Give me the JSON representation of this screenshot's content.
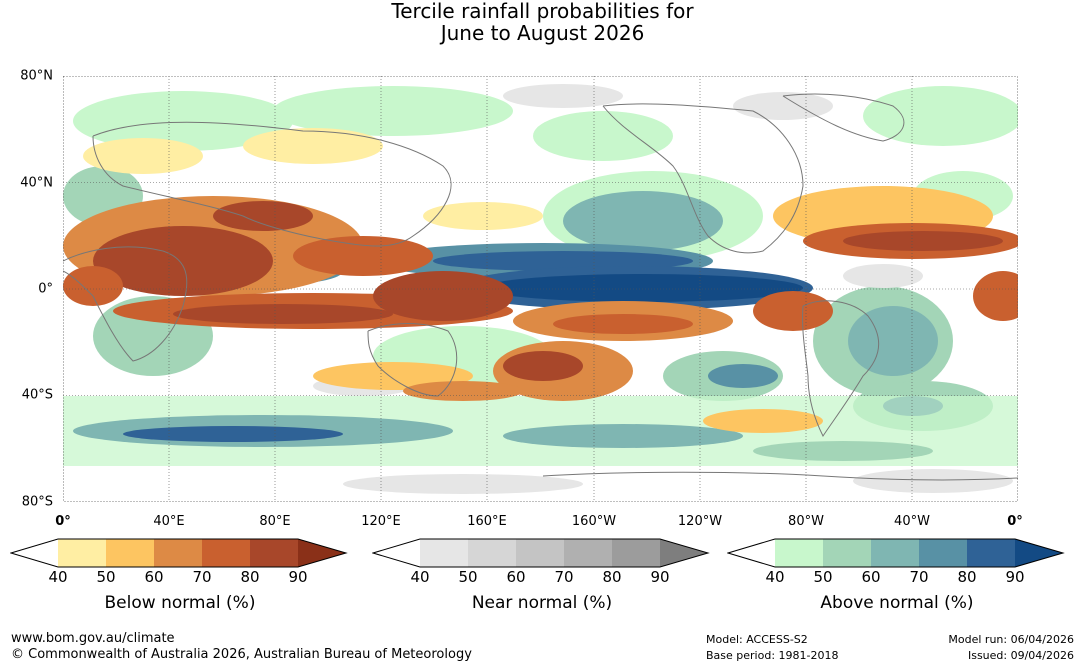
{
  "title": {
    "line1": "Tercile rainfall probabilities for",
    "line2": "June to August 2026"
  },
  "map": {
    "lat_labels": [
      "80°N",
      "40°N",
      "0°",
      "40°S",
      "80°S"
    ],
    "lon_labels": [
      "0°",
      "40°E",
      "80°E",
      "120°E",
      "160°E",
      "160°W",
      "120°W",
      "80°W",
      "40°W",
      "0°"
    ]
  },
  "legends": [
    {
      "title": "Below normal (%)",
      "ticks": [
        "40",
        "50",
        "60",
        "70",
        "80",
        "90"
      ],
      "colors": [
        "#ffffff",
        "#ffeea3",
        "#fdc561",
        "#dd8a45",
        "#c9602f",
        "#a8472a",
        "#8a3018"
      ]
    },
    {
      "title": "Near normal (%)",
      "ticks": [
        "40",
        "50",
        "60",
        "70",
        "80",
        "90"
      ],
      "colors": [
        "#ffffff",
        "#e6e6e6",
        "#d6d6d6",
        "#c4c4c4",
        "#b0b0b0",
        "#9c9c9c",
        "#7e7e7e"
      ]
    },
    {
      "title": "Above normal (%)",
      "ticks": [
        "40",
        "50",
        "60",
        "70",
        "80",
        "90"
      ],
      "colors": [
        "#ffffff",
        "#c8f7cc",
        "#a3d5b7",
        "#7fb6b2",
        "#5891a5",
        "#2f6296",
        "#134a84"
      ]
    }
  ],
  "footer": {
    "url": "www.bom.gov.au/climate",
    "copyright": "© Commonwealth of Australia 2026, Australian Bureau of Meteorology",
    "model": "Model: ACCESS-S2",
    "base_period": "Base period: 1981-2018",
    "model_run": "Model run: 06/04/2026",
    "issued": "Issued: 09/04/2026"
  }
}
